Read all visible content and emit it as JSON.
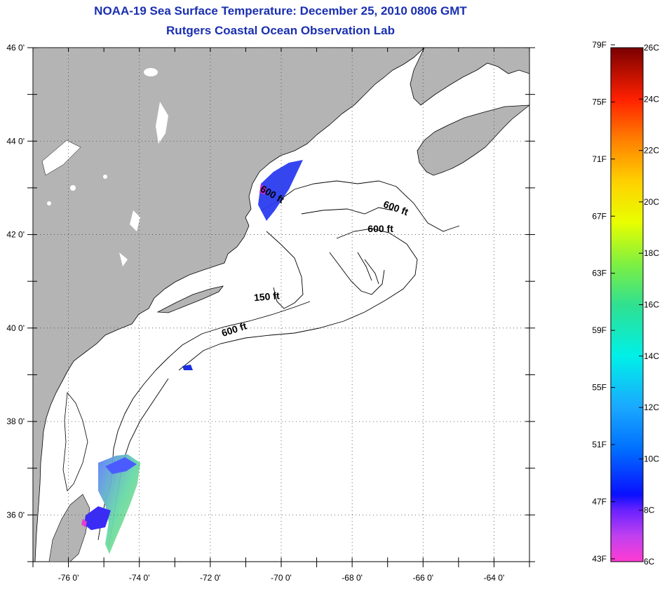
{
  "title": {
    "line1": "NOAA-19 Sea Surface Temperature:  December 25, 2010 0806 GMT",
    "line2": "Rutgers Coastal Ocean Observation Lab"
  },
  "map": {
    "lon_range": [
      -77,
      -63
    ],
    "lat_range": [
      35,
      46
    ],
    "lon_ticks": [
      {
        "value": -76,
        "label": "-76 0'"
      },
      {
        "value": -74,
        "label": "-74 0'"
      },
      {
        "value": -72,
        "label": "-72 0'"
      },
      {
        "value": -70,
        "label": "-70 0'"
      },
      {
        "value": -68,
        "label": "-68 0'"
      },
      {
        "value": -66,
        "label": "-66 0'"
      },
      {
        "value": -64,
        "label": "-64 0'"
      }
    ],
    "lat_ticks": [
      {
        "value": 46,
        "label": "46 0'"
      },
      {
        "value": 44,
        "label": "44 0'"
      },
      {
        "value": 42,
        "label": "42 0'"
      },
      {
        "value": 40,
        "label": "40 0'"
      },
      {
        "value": 38,
        "label": "38 0'"
      },
      {
        "value": 36,
        "label": "36 0'"
      }
    ],
    "contour_labels": [
      {
        "text": "600 ft",
        "lon": -70.3,
        "lat": 42.8,
        "angle": 30
      },
      {
        "text": "600 ft",
        "lon": -66.8,
        "lat": 42.5,
        "angle": 20
      },
      {
        "text": "600 ft",
        "lon": -67.2,
        "lat": 42.05,
        "angle": 0
      },
      {
        "text": "150 ft",
        "lon": -70.4,
        "lat": 40.6,
        "angle": -5
      },
      {
        "text": "600 ft",
        "lon": -71.3,
        "lat": 39.9,
        "angle": -18
      }
    ],
    "colors": {
      "land": "#b4b4b4",
      "ocean": "#ffffff"
    }
  },
  "colorbar": {
    "f_labels": [
      "79F",
      "75F",
      "71F",
      "67F",
      "63F",
      "59F",
      "55F",
      "51F",
      "47F",
      "43F"
    ],
    "c_labels": [
      "26C",
      "24C",
      "22C",
      "20C",
      "18C",
      "16C",
      "14C",
      "12C",
      "10C",
      "8C",
      "6C"
    ],
    "c_range": [
      6,
      26
    ]
  }
}
